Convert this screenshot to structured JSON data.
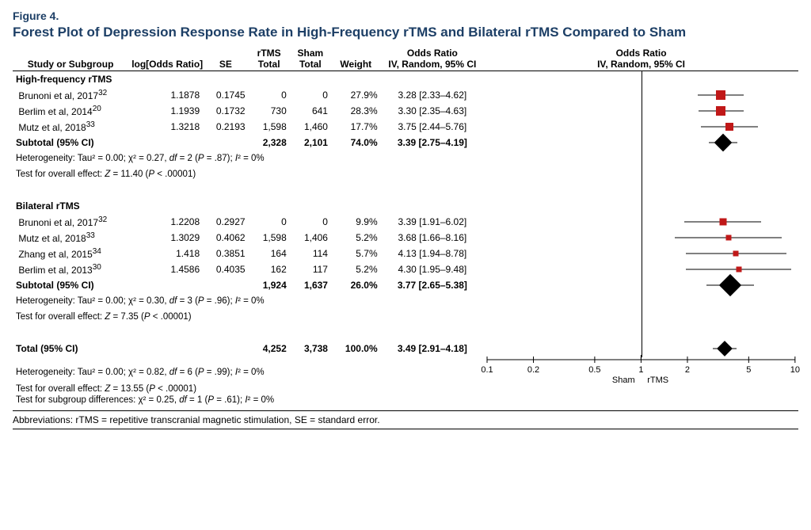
{
  "figure": {
    "label": "Figure 4.",
    "title": "Forest Plot of Depression Response Rate in High-Frequency rTMS and Bilateral rTMS Compared to Sham"
  },
  "headers": {
    "study": "Study or Subgroup",
    "logOR": "log[Odds Ratio]",
    "se": "SE",
    "rtms": "rTMS Total",
    "sham": "Sham Total",
    "weight": "Weight",
    "or_ci": "Odds Ratio IV, Random, 95% CI",
    "plot": "Odds Ratio IV, Random, 95% CI"
  },
  "plot": {
    "xmin": 0.1,
    "xmax": 10,
    "ref": 1,
    "ticks": [
      0.1,
      0.2,
      0.5,
      1,
      2,
      5,
      10
    ],
    "tick_labels": [
      "0.1",
      "0.2",
      "0.5",
      "1",
      "2",
      "5",
      "10"
    ],
    "left_label": "Sham",
    "right_label": "rTMS",
    "marker_color": "#c01818",
    "line_color": "#000000",
    "diamond_color": "#000000"
  },
  "groups": [
    {
      "name": "High-frequency rTMS",
      "rows": [
        {
          "study": "Brunoni et al, 2017",
          "sup": "32",
          "logOR": "1.1878",
          "se": "0.1745",
          "rtms": "0",
          "sham": "0",
          "weight": "27.9%",
          "or_txt": "3.28 [2.33–4.62]",
          "pt": 3.28,
          "lo": 2.33,
          "hi": 4.62,
          "msize": 12
        },
        {
          "study": "Berlim et al, 2014",
          "sup": "20",
          "logOR": "1.1939",
          "se": "0.1732",
          "rtms": "730",
          "sham": "641",
          "weight": "28.3%",
          "or_txt": "3.30 [2.35–4.63]",
          "pt": 3.3,
          "lo": 2.35,
          "hi": 4.63,
          "msize": 12
        },
        {
          "study": "Mutz et al, 2018",
          "sup": "33",
          "logOR": "1.3218",
          "se": "0.2193",
          "rtms": "1,598",
          "sham": "1,460",
          "weight": "17.7%",
          "or_txt": "3.75 [2.44–5.76]",
          "pt": 3.75,
          "lo": 2.44,
          "hi": 5.76,
          "msize": 10
        }
      ],
      "subtotal": {
        "label": "Subtotal (95% CI)",
        "rtms": "2,328",
        "sham": "2,101",
        "weight": "74.0%",
        "or_txt": "3.39 [2.75–4.19]",
        "pt": 3.39,
        "lo": 2.75,
        "hi": 4.19,
        "dsize": 16
      },
      "het": "Heterogeneity: Tau² = 0.00; χ² = 0.27, df = 2 (P = .87); I² = 0%",
      "eff": "Test for overall effect: Z = 11.40 (P < .00001)"
    },
    {
      "name": "Bilateral rTMS",
      "rows": [
        {
          "study": "Brunoni et al, 2017",
          "sup": "32",
          "logOR": "1.2208",
          "se": "0.2927",
          "rtms": "0",
          "sham": "0",
          "weight": "9.9%",
          "or_txt": "3.39 [1.91–6.02]",
          "pt": 3.39,
          "lo": 1.91,
          "hi": 6.02,
          "msize": 9
        },
        {
          "study": "Mutz et al, 2018",
          "sup": "33",
          "logOR": "1.3029",
          "se": "0.4062",
          "rtms": "1,598",
          "sham": "1,406",
          "weight": "5.2%",
          "or_txt": "3.68 [1.66–8.16]",
          "pt": 3.68,
          "lo": 1.66,
          "hi": 8.16,
          "msize": 7
        },
        {
          "study": "Zhang et al, 2015",
          "sup": "34",
          "logOR": "1.418",
          "se": "0.3851",
          "rtms": "164",
          "sham": "114",
          "weight": "5.7%",
          "or_txt": "4.13 [1.94–8.78]",
          "pt": 4.13,
          "lo": 1.94,
          "hi": 8.78,
          "msize": 7
        },
        {
          "study": "Berlim et al, 2013",
          "sup": "30",
          "logOR": "1.4586",
          "se": "0.4035",
          "rtms": "162",
          "sham": "117",
          "weight": "5.2%",
          "or_txt": "4.30 [1.95–9.48]",
          "pt": 4.3,
          "lo": 1.95,
          "hi": 9.48,
          "msize": 7
        }
      ],
      "subtotal": {
        "label": "Subtotal (95% CI)",
        "rtms": "1,924",
        "sham": "1,637",
        "weight": "26.0%",
        "or_txt": "3.77 [2.65–5.38]",
        "pt": 3.77,
        "lo": 2.65,
        "hi": 5.38,
        "dsize": 20
      },
      "het": "Heterogeneity: Tau² = 0.00; χ² = 0.30, df = 3 (P = .96); I² = 0%",
      "eff": "Test for overall effect: Z = 7.35 (P < .00001)"
    }
  ],
  "total": {
    "label": "Total (95% CI)",
    "rtms": "4,252",
    "sham": "3,738",
    "weight": "100.0%",
    "or_txt": "3.49 [2.91–4.18]",
    "pt": 3.49,
    "lo": 2.91,
    "hi": 4.18,
    "dsize": 14
  },
  "total_notes": {
    "het": "Heterogeneity: Tau² = 0.00; χ² = 0.82, df = 6 (P = .99); I² = 0%",
    "eff": "Test for overall effect: Z = 13.55 (P < .00001)",
    "subdiff": "Test for subgroup differences: χ² = 0.25, df = 1 (P = .61); I² = 0%"
  },
  "abbrev": "Abbreviations: rTMS = repetitive transcranial magnetic stimulation, SE = standard error."
}
